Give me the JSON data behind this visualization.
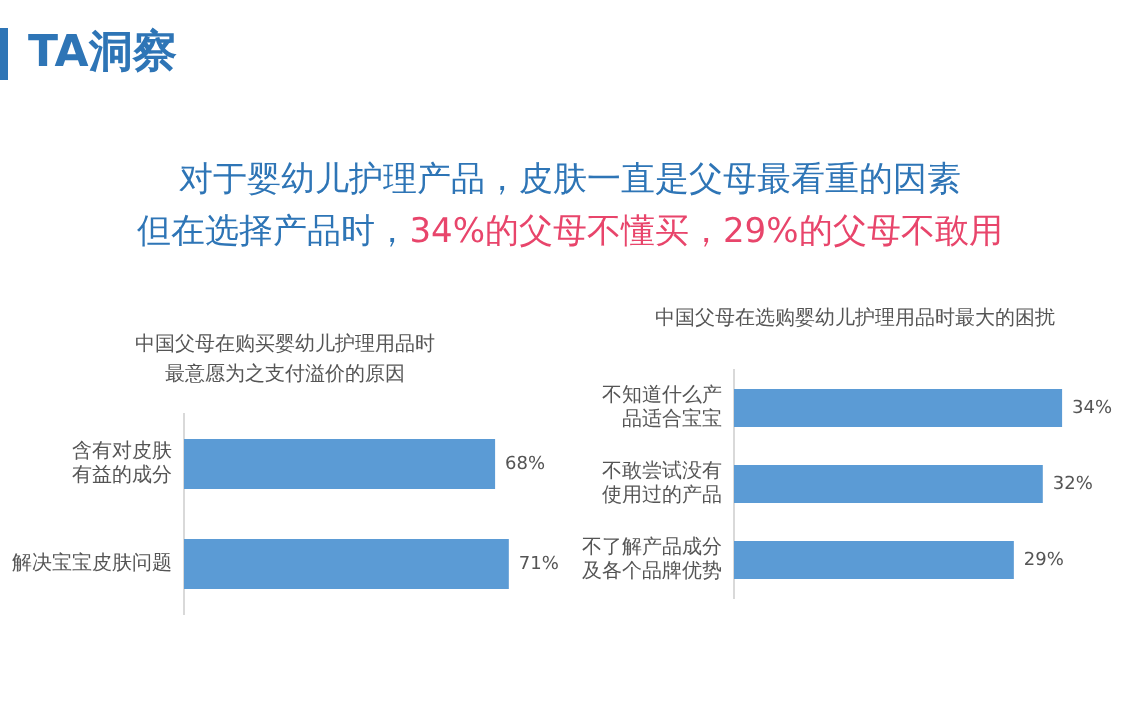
{
  "chart_data": [
    {
      "type": "other",
      "title": "TA洞察",
      "subtitle": "对于婴幼儿护理产品，皮肤一直是父母最看重的因素",
      "annotations": [
        "但在选择产品时，",
        "34%的父母不懂买，29%的父母不敢用"
      ]
    },
    {
      "type": "bar",
      "orientation": "horizontal",
      "title": "中国父母在购买婴幼儿护理用品时最意愿为之支付溢价的原因",
      "categories": [
        "含有对皮肤有益的成分",
        "解决宝宝皮肤问题"
      ],
      "values": [
        68,
        71
      ],
      "value_labels": [
        "68%",
        "71%"
      ],
      "color": "#5b9bd5",
      "tick_labels": "y",
      "grid": false
    },
    {
      "type": "bar",
      "orientation": "horizontal",
      "title": "中国父母在选购婴幼儿护理用品时最大的困扰",
      "categories": [
        "不知道什么产品适合宝宝",
        "不敢尝试没有使用过的产品",
        "不了解产品成分及各个品牌优势"
      ],
      "values": [
        34,
        32,
        29
      ],
      "value_labels": [
        "34%",
        "32%",
        "29%"
      ],
      "color": "#5b9bd5",
      "tick_labels": "y",
      "grid": false
    }
  ]
}
